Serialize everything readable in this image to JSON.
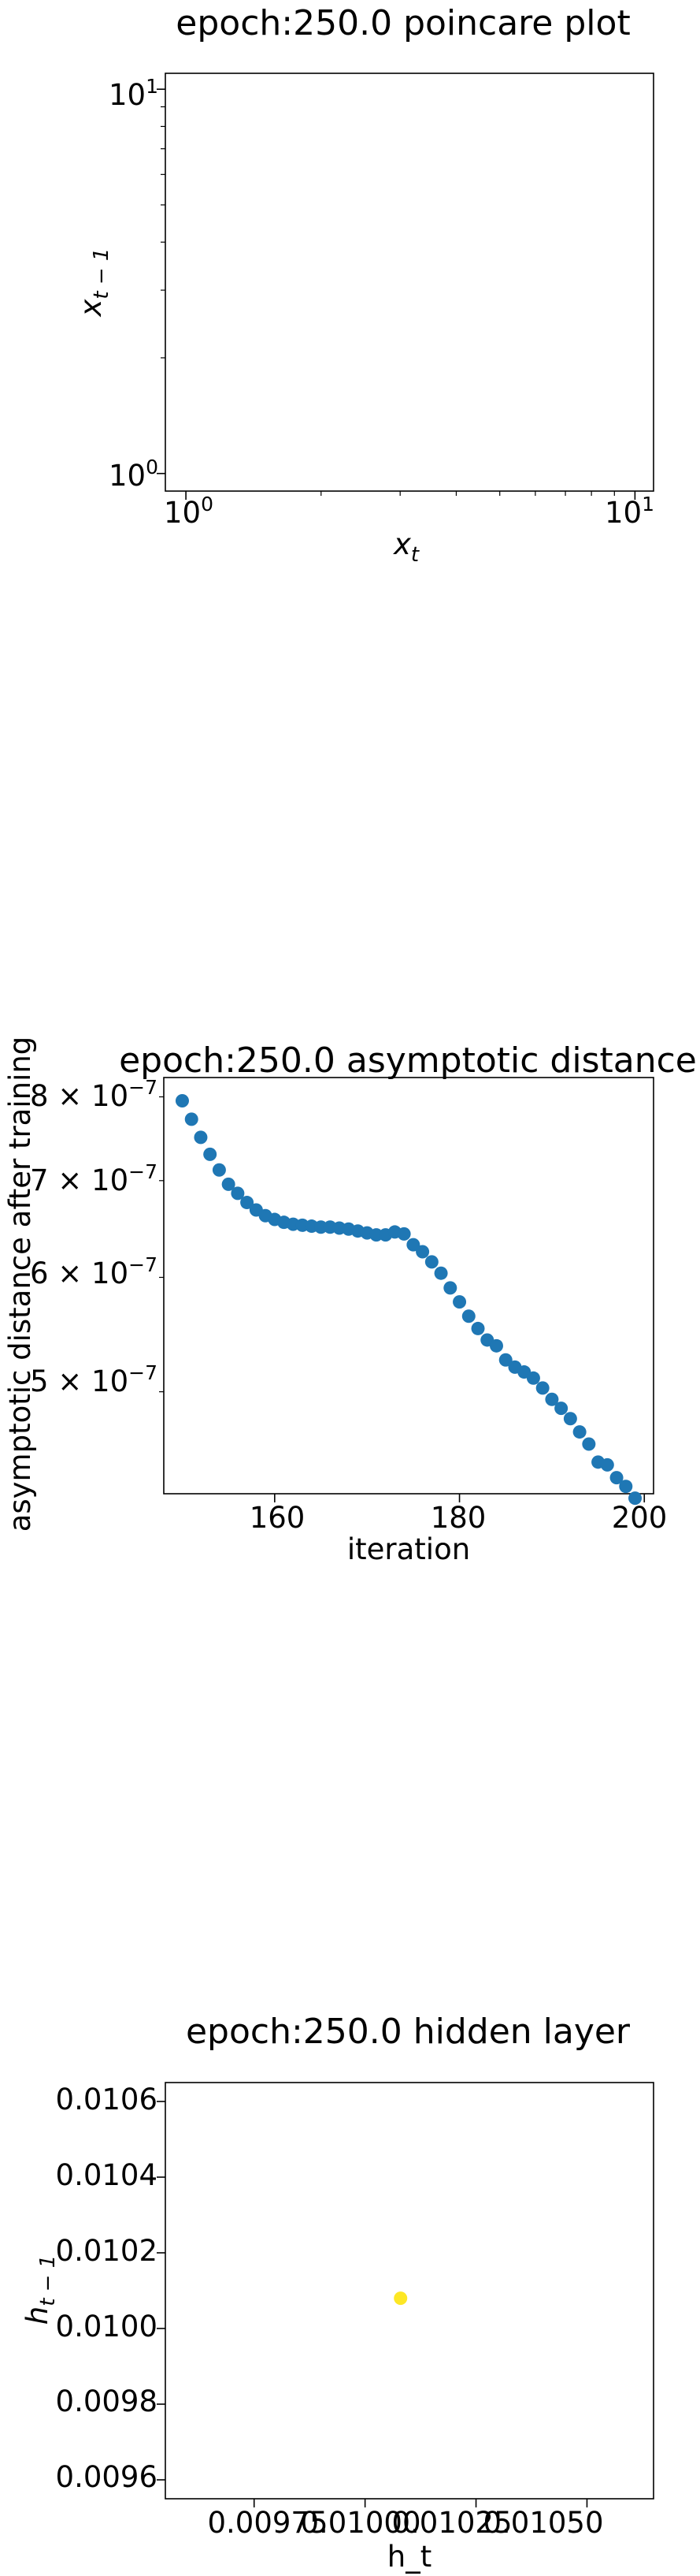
{
  "chart_data": [
    {
      "type": "scatter",
      "title": "epoch:250.0 poincare plot",
      "xlabel": "x_t",
      "ylabel": "x_{t-1}",
      "xscale": "log",
      "yscale": "log",
      "xlim": [
        0.9,
        11
      ],
      "ylim": [
        0.9,
        11
      ],
      "x_ticks": [
        "10^0",
        "10^1"
      ],
      "y_ticks": [
        "10^0",
        "10^1"
      ],
      "points": [],
      "grid": false
    },
    {
      "type": "scatter",
      "title": "epoch:250.0 asymptotic distance",
      "xlabel": "iteration",
      "ylabel": "asymptotic distance after training",
      "yscale": "log",
      "xlim": [
        148,
        201
      ],
      "ylim": [
        4.25e-07,
        8.25e-07
      ],
      "x_ticks": [
        "160",
        "180",
        "200"
      ],
      "y_ticks": [
        "8 × 10^-7",
        "7 × 10^-7",
        "6 × 10^-7",
        "5 × 10^-7"
      ],
      "marker_color": "#1f77b4",
      "x": [
        150,
        151,
        152,
        153,
        154,
        155,
        156,
        157,
        158,
        159,
        160,
        161,
        162,
        163,
        164,
        165,
        166,
        167,
        168,
        169,
        170,
        171,
        172,
        173,
        174,
        175,
        176,
        177,
        178,
        179,
        180,
        181,
        182,
        183,
        184,
        185,
        186,
        187,
        188,
        189,
        190,
        191,
        192,
        193,
        194,
        195,
        196,
        197,
        198,
        199
      ],
      "y": [
        7.95e-07,
        7.72e-07,
        7.5e-07,
        7.3e-07,
        7.12e-07,
        6.96e-07,
        6.86e-07,
        6.76e-07,
        6.68e-07,
        6.62e-07,
        6.58e-07,
        6.55e-07,
        6.53e-07,
        6.52e-07,
        6.51e-07,
        6.5e-07,
        6.5e-07,
        6.49e-07,
        6.48e-07,
        6.46e-07,
        6.44e-07,
        6.42e-07,
        6.42e-07,
        6.45e-07,
        6.43e-07,
        6.32e-07,
        6.25e-07,
        6.15e-07,
        6.04e-07,
        5.9e-07,
        5.77e-07,
        5.64e-07,
        5.53e-07,
        5.43e-07,
        5.38e-07,
        5.26e-07,
        5.2e-07,
        5.16e-07,
        5.11e-07,
        5.03e-07,
        4.94e-07,
        4.87e-07,
        4.79e-07,
        4.69e-07,
        4.6e-07,
        4.47e-07,
        4.45e-07,
        4.36e-07,
        4.3e-07,
        4.22e-07
      ],
      "grid": false
    },
    {
      "type": "scatter",
      "title": "epoch:250.0 hidden layer",
      "xlabel": "h_t",
      "ylabel": "h_{t-1}",
      "xlim": [
        0.00955,
        0.01065
      ],
      "ylim": [
        0.00955,
        0.01065
      ],
      "x_ticks": [
        "0.00975",
        "0.01000",
        "0.01025",
        "0.01050"
      ],
      "y_ticks": [
        "0.0106",
        "0.0104",
        "0.0102",
        "0.0100",
        "0.0098",
        "0.0096"
      ],
      "marker_color": "#fde725",
      "x": [
        0.01008
      ],
      "y": [
        0.01008
      ],
      "grid": false
    }
  ]
}
